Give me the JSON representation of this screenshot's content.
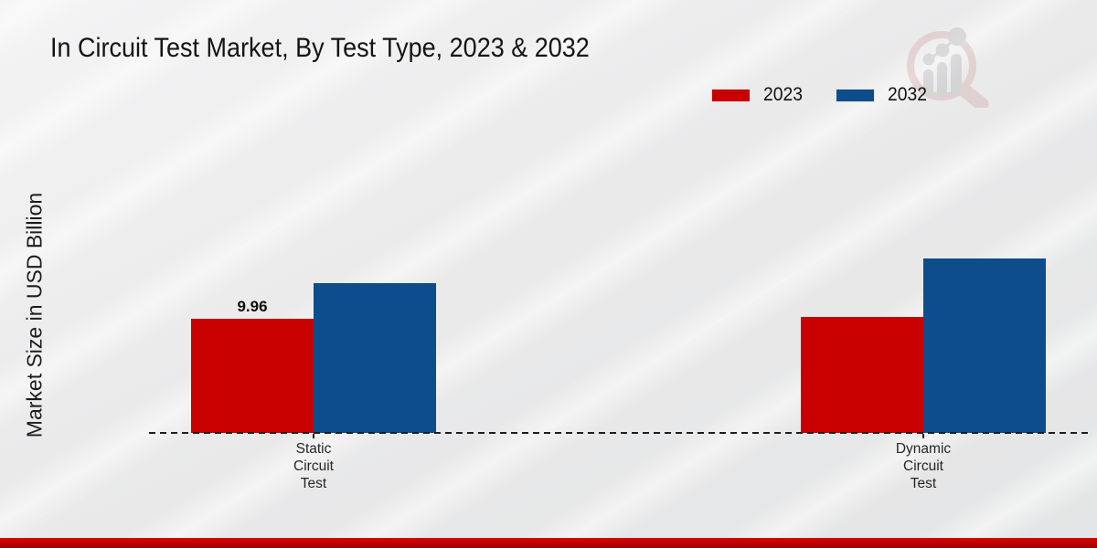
{
  "page": {
    "title": "In Circuit Test Market, By Test Type, 2023 & 2032",
    "ylabel": "Market Size in USD Billion",
    "footer_band_color": "#c00000",
    "background_color": "#e9e9ea",
    "watermark_icon": "magnifier-bar-chart-logo"
  },
  "chart_data": {
    "type": "bar",
    "title": "In Circuit Test Market, By Test Type, 2023 & 2032",
    "xlabel": "",
    "ylabel": "Market Size in USD Billion",
    "categories": [
      "Static Circuit Test",
      "Dynamic Circuit Test"
    ],
    "series": [
      {
        "name": "2023",
        "color": "#c80000",
        "values": [
          9.96,
          10.1
        ]
      },
      {
        "name": "2032",
        "color": "#0d4d8c",
        "values": [
          13.1,
          15.2
        ]
      }
    ],
    "data_labels": [
      {
        "series": "2023",
        "category": "Static Circuit Test",
        "text": "9.96"
      }
    ],
    "ylim": [
      0,
      17
    ],
    "gridlines": false,
    "y_axis_ticks_visible": false,
    "baseline_style": "dashed",
    "legend_position": "top-right"
  }
}
